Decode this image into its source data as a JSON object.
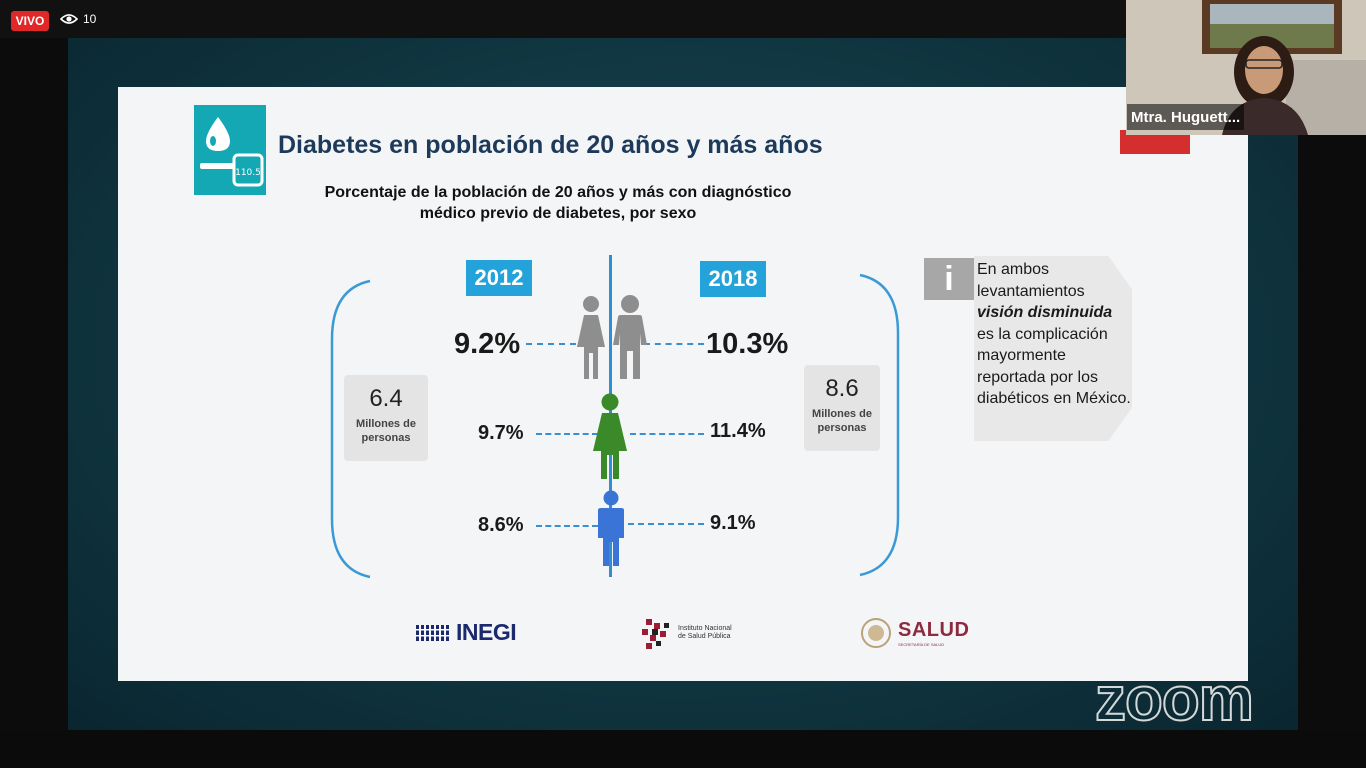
{
  "meeting": {
    "live_label": "VIVO",
    "viewer_count": "10",
    "participant_name": "Mtra. Huguett...",
    "watermark": "zoom"
  },
  "slide": {
    "title": "Diabetes en población de 20 años y más años",
    "icon_reading": "110.5",
    "subtitle": "Porcentaje de la población de 20 años y más con diagnóstico médico previo de diabetes, por sexo",
    "year_left": "2012",
    "year_right": "2018",
    "rows": [
      {
        "group": "total",
        "left": "9.2%",
        "right": "10.3%"
      },
      {
        "group": "mujeres",
        "left": "9.7%",
        "right": "11.4%"
      },
      {
        "group": "hombres",
        "left": "8.6%",
        "right": "9.1%"
      }
    ],
    "millions_left": {
      "value": "6.4",
      "unit": "Millones de personas"
    },
    "millions_right": {
      "value": "8.6",
      "unit": "Millones de personas"
    },
    "info": {
      "line1": "En ambos levantamientos",
      "emphasis": "visión disminuida",
      "line2": "es la complicación mayormente reportada por los diabéticos en México."
    },
    "logos": {
      "inegi": "INEGI",
      "insp_line1": "Instituto Nacional",
      "insp_line2": "de Salud Pública",
      "salud": "SALUD",
      "salud_sub": "SECRETARÍA DE SALUD"
    }
  },
  "colors": {
    "accent_blue": "#23a3d9",
    "title_navy": "#1d3a5a",
    "women_green": "#3a8a2a",
    "men_blue": "#3a74d6",
    "total_gray": "#8e8e8e",
    "live_red": "#e02828"
  }
}
